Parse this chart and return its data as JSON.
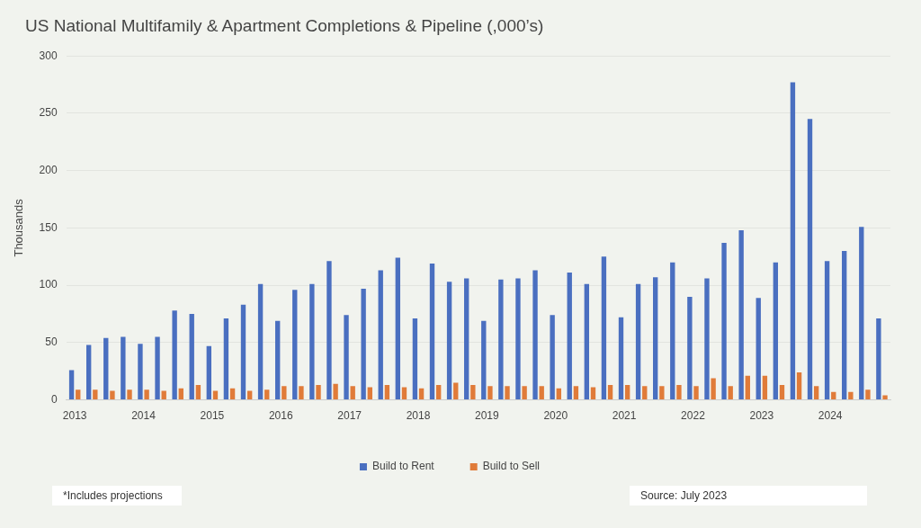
{
  "chart_data": {
    "type": "bar",
    "title": "US National Multifamily & Apartment Completions & Pipeline (,000’s)",
    "ylabel": "Thousands",
    "categories": [
      "2013",
      null,
      null,
      null,
      "2014",
      null,
      null,
      null,
      "2015",
      null,
      null,
      null,
      "2016",
      null,
      null,
      null,
      "2017",
      null,
      null,
      null,
      "2018",
      null,
      null,
      null,
      "2019",
      null,
      null,
      null,
      "2020",
      null,
      null,
      null,
      "2021",
      null,
      null,
      null,
      "2022",
      null,
      null,
      null,
      "2023",
      null,
      null,
      null,
      "2024",
      null,
      null,
      null
    ],
    "series": [
      {
        "name": "Build to Rent",
        "color": "#4a6fc0",
        "values": [
          26,
          48,
          54,
          55,
          49,
          55,
          78,
          75,
          47,
          71,
          83,
          101,
          69,
          96,
          101,
          121,
          74,
          97,
          113,
          124,
          71,
          119,
          103,
          106,
          69,
          105,
          106,
          113,
          74,
          111,
          101,
          125,
          72,
          101,
          107,
          120,
          90,
          106,
          137,
          148,
          89,
          120,
          277,
          245,
          121,
          130,
          151,
          71
        ]
      },
      {
        "name": "Build to Sell",
        "color": "#e07b39",
        "values": [
          9,
          9,
          8,
          9,
          9,
          8,
          10,
          13,
          8,
          10,
          8,
          9,
          12,
          12,
          13,
          14,
          12,
          11,
          13,
          11,
          10,
          13,
          15,
          13,
          12,
          12,
          12,
          12,
          10,
          12,
          11,
          13,
          13,
          12,
          12,
          13,
          12,
          19,
          12,
          21,
          21,
          13,
          24,
          12,
          7,
          7,
          9,
          4
        ]
      }
    ],
    "ylim": [
      0,
      300
    ],
    "yticks": [
      0,
      50,
      100,
      150,
      200,
      250,
      300
    ],
    "grid": "y",
    "legend": "bottom",
    "annotations": [
      "*Includes projections",
      "Source: July 2023"
    ]
  }
}
